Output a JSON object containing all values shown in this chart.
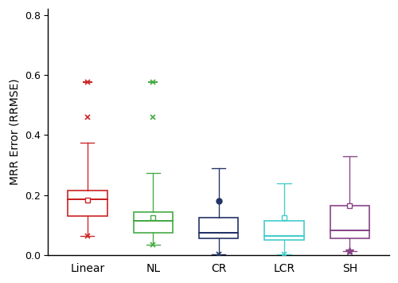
{
  "ylabel": "MRR Error (RRMSE)",
  "ylim": [
    0.0,
    0.82
  ],
  "yticks": [
    0.0,
    0.2,
    0.4,
    0.6,
    0.8
  ],
  "categories": [
    "Linear",
    "NL",
    "CR",
    "LCR",
    "SH"
  ],
  "colors": [
    "#cc2222",
    "#44aa44",
    "#223366",
    "#44cccc",
    "#884488"
  ],
  "box_stats": [
    {
      "q1": 0.13,
      "med": 0.185,
      "q3": 0.215,
      "whislo": 0.065,
      "whishi": 0.375,
      "mean": 0.183,
      "fliers": [
        0.46,
        0.575
      ],
      "flierstyle": "x",
      "top_outlier_style": "_",
      "bottom_marker": {
        "val": 0.065,
        "style": "x"
      },
      "mean_style": "s"
    },
    {
      "q1": 0.075,
      "med": 0.115,
      "q3": 0.145,
      "whislo": 0.035,
      "whishi": 0.275,
      "mean": 0.125,
      "fliers": [
        0.46,
        0.575
      ],
      "flierstyle": "x",
      "top_outlier_style": "_",
      "bottom_marker": {
        "val": 0.035,
        "style": "x"
      },
      "mean_style": "s"
    },
    {
      "q1": 0.055,
      "med": 0.075,
      "q3": 0.125,
      "whislo": 0.002,
      "whishi": 0.29,
      "mean": 0.18,
      "fliers": [],
      "flierstyle": "x",
      "bottom_marker": {
        "val": 0.002,
        "style": "x"
      },
      "mean_style": "o"
    },
    {
      "q1": 0.05,
      "med": 0.065,
      "q3": 0.115,
      "whislo": 0.003,
      "whishi": 0.24,
      "mean": 0.125,
      "fliers": [],
      "flierstyle": "x",
      "bottom_marker": {
        "val": 0.003,
        "style": "x"
      },
      "mean_style": "s"
    },
    {
      "q1": 0.055,
      "med": 0.082,
      "q3": 0.165,
      "whislo": 0.015,
      "whishi": 0.33,
      "mean": 0.165,
      "fliers": [],
      "flierstyle": "x",
      "bottom_marker": {
        "val": 0.015,
        "style": "*"
      },
      "mean_style": "s"
    }
  ],
  "background_color": "#ffffff",
  "box_width": 0.6,
  "linewidth": 1.2,
  "figsize": [
    5.0,
    3.55
  ],
  "dpi": 100
}
